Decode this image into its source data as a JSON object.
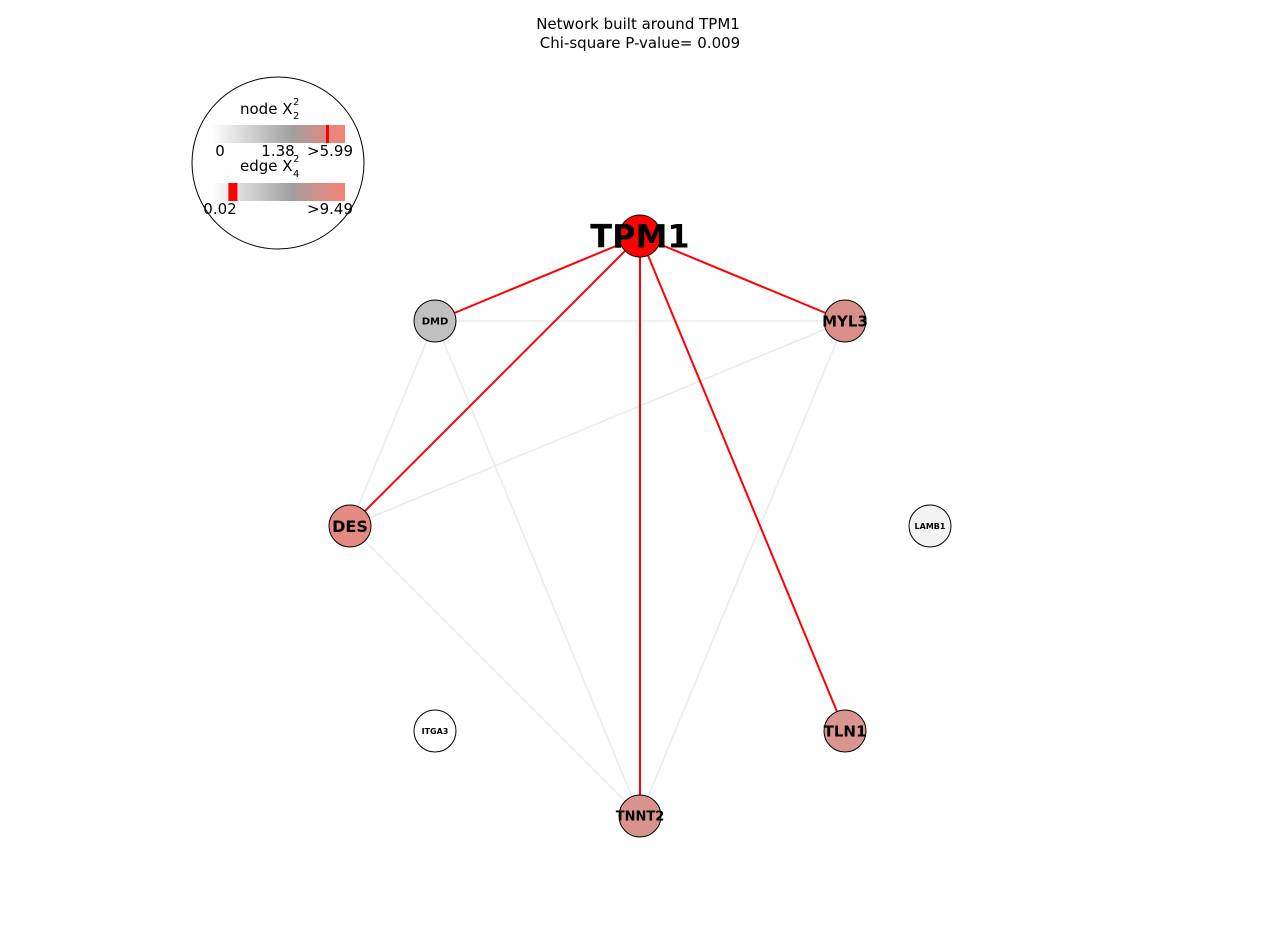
{
  "title": {
    "line1": "Network built around TPM1",
    "line2": "Chi-square P-value= 0.009"
  },
  "legend": {
    "node_label": "node X",
    "node_sup": "2",
    "node_sub": "2",
    "node_ticks": [
      "0",
      "1.38",
      ">5.99"
    ],
    "node_marker_value": 5.2,
    "node_max": 5.99,
    "edge_label": "edge X",
    "edge_sup": "2",
    "edge_sub": "4",
    "edge_ticks": [
      "0.02",
      ">9.49"
    ],
    "edge_marker_value": 0.6,
    "edge_max": 9.49
  },
  "colors": {
    "edge_strong": "#ff0000",
    "edge_weak": "#ebebeb",
    "gradient_low": "#ffffff",
    "gradient_mid": "#a0a0a0",
    "gradient_high": "#fa8072",
    "marker": "#ff0000"
  },
  "nodes": [
    {
      "id": "TPM1",
      "label": "TPM1",
      "color": "#ff0000",
      "size": "xl"
    },
    {
      "id": "DMD",
      "label": "DMD",
      "color": "#c0c0c0",
      "size": "s"
    },
    {
      "id": "MYL3",
      "label": "MYL3",
      "color": "#d9908a",
      "size": "m"
    },
    {
      "id": "DES",
      "label": "DES",
      "color": "#e38a82",
      "size": "m"
    },
    {
      "id": "LAMB1",
      "label": "LAMB1",
      "color": "#f3f3f3",
      "size": "xs"
    },
    {
      "id": "ITGA3",
      "label": "ITGA3",
      "color": "#ffffff",
      "size": "xs"
    },
    {
      "id": "TLN1",
      "label": "TLN1",
      "color": "#d9958f",
      "size": "m"
    },
    {
      "id": "TNNT2",
      "label": "TNNT2",
      "color": "#d9928c",
      "size": "s2"
    }
  ],
  "edges": [
    {
      "source": "TPM1",
      "target": "DMD",
      "strength": "strong"
    },
    {
      "source": "TPM1",
      "target": "MYL3",
      "strength": "strong"
    },
    {
      "source": "TPM1",
      "target": "DES",
      "strength": "strong"
    },
    {
      "source": "TPM1",
      "target": "TNNT2",
      "strength": "strong"
    },
    {
      "source": "TPM1",
      "target": "TLN1",
      "strength": "strong"
    },
    {
      "source": "DMD",
      "target": "MYL3",
      "strength": "weak"
    },
    {
      "source": "DMD",
      "target": "DES",
      "strength": "weak"
    },
    {
      "source": "DMD",
      "target": "TNNT2",
      "strength": "weak"
    },
    {
      "source": "MYL3",
      "target": "DES",
      "strength": "weak"
    },
    {
      "source": "MYL3",
      "target": "TNNT2",
      "strength": "weak"
    },
    {
      "source": "DES",
      "target": "TNNT2",
      "strength": "weak"
    }
  ]
}
